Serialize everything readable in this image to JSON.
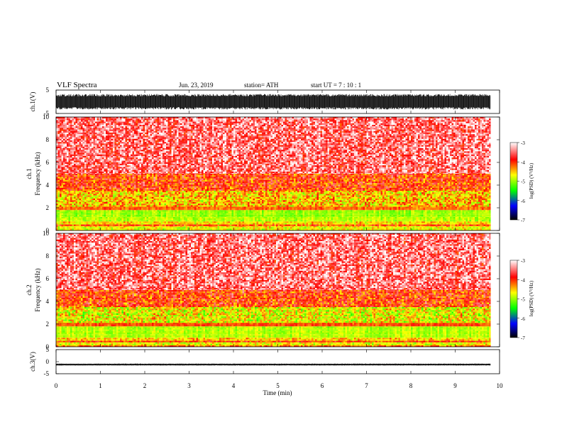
{
  "header": {
    "title": "VLF  Spectra",
    "date": "Jun. 23, 2019",
    "station": "station= ATH",
    "start_ut": "start  UT  =    7  : 10 : 1"
  },
  "chart_data": [
    {
      "type": "line",
      "panel": "ch1-waveform",
      "ylabel": "ch.1(V)",
      "ylim": [
        -5,
        5
      ],
      "yticks": [
        5,
        -5
      ],
      "xlim": [
        0,
        10
      ],
      "data_extent_min": [
        0,
        9.8
      ],
      "amplitude_envelope_V": [
        -3.3,
        3.3
      ]
    },
    {
      "type": "heatmap",
      "panel": "ch1-spectrogram",
      "ylabel_line1": "ch.1",
      "ylabel_line2": "Frequency  (kHz)",
      "ylim": [
        0,
        10
      ],
      "yticks": [
        0,
        2,
        4,
        6,
        8,
        10
      ],
      "xlim": [
        0,
        10
      ],
      "data_extent_min": [
        0,
        9.8
      ],
      "bands": [
        {
          "f_kHz": [
            0,
            0.3
          ],
          "log_psd": -4.2,
          "pattern": "striped"
        },
        {
          "f_kHz": [
            0.3,
            0.8
          ],
          "log_psd": -4.1,
          "pattern": "striped"
        },
        {
          "f_kHz": [
            0.8,
            1.2
          ],
          "log_psd": -4.9,
          "pattern": "solid"
        },
        {
          "f_kHz": [
            1.2,
            1.8
          ],
          "log_psd": -5.0,
          "pattern": "solid"
        },
        {
          "f_kHz": [
            1.8,
            2.1
          ],
          "log_psd": -4.2,
          "pattern": "solid"
        },
        {
          "f_kHz": [
            2.1,
            2.5
          ],
          "log_psd": -4.5,
          "pattern": "speckled"
        },
        {
          "f_kHz": [
            2.5,
            3.5
          ],
          "log_psd": -4.5,
          "pattern": "speckled"
        },
        {
          "f_kHz": [
            3.5,
            5.0
          ],
          "log_psd": -4.0,
          "pattern": "speckled"
        },
        {
          "f_kHz": [
            5.0,
            10.0
          ],
          "log_psd": -3.5,
          "pattern": "speckled"
        }
      ]
    },
    {
      "type": "heatmap",
      "panel": "ch2-spectrogram",
      "ylabel_line1": "ch.2",
      "ylabel_line2": "Frequency  (kHz)",
      "ylim": [
        0,
        10
      ],
      "yticks": [
        0,
        2,
        4,
        6,
        8,
        10
      ],
      "xlim": [
        0,
        10
      ],
      "data_extent_min": [
        0,
        9.8
      ],
      "bands": [
        {
          "f_kHz": [
            0,
            0.4
          ],
          "log_psd": -4.2,
          "pattern": "striped"
        },
        {
          "f_kHz": [
            0.4,
            0.8
          ],
          "log_psd": -4.0,
          "pattern": "striped"
        },
        {
          "f_kHz": [
            0.8,
            1.8
          ],
          "log_psd": -4.9,
          "pattern": "solid"
        },
        {
          "f_kHz": [
            1.8,
            2.1
          ],
          "log_psd": -4.1,
          "pattern": "solid"
        },
        {
          "f_kHz": [
            2.1,
            3.5
          ],
          "log_psd": -4.7,
          "pattern": "speckled"
        },
        {
          "f_kHz": [
            3.5,
            5.0
          ],
          "log_psd": -4.0,
          "pattern": "speckled"
        },
        {
          "f_kHz": [
            5.0,
            10.0
          ],
          "log_psd": -3.5,
          "pattern": "speckled"
        }
      ]
    },
    {
      "type": "line",
      "panel": "ch3-waveform",
      "ylabel": "ch.3(V)",
      "ylim": [
        -5,
        5
      ],
      "yticks": [
        5,
        0,
        -5
      ],
      "xlim": [
        0,
        10
      ],
      "data_extent_min": [
        0,
        9.8
      ],
      "baseline_V": -1.2,
      "amplitude_envelope_V": [
        -1.6,
        -0.8
      ]
    }
  ],
  "x_axis": {
    "label": "Time  (min)",
    "ticks": [
      "0",
      "1",
      "2",
      "3",
      "4",
      "5",
      "6",
      "7",
      "8",
      "9",
      "10"
    ]
  },
  "colorbar": {
    "label": "log(PSD) (V²/Hz)",
    "range": [
      -7,
      -3
    ],
    "ticks": [
      "-3",
      "-4",
      "-5",
      "-6",
      "-7"
    ],
    "colors": [
      "#ffffff",
      "#ff0000",
      "#ffff00",
      "#00ff00",
      "#0000ff",
      "#000000"
    ]
  }
}
